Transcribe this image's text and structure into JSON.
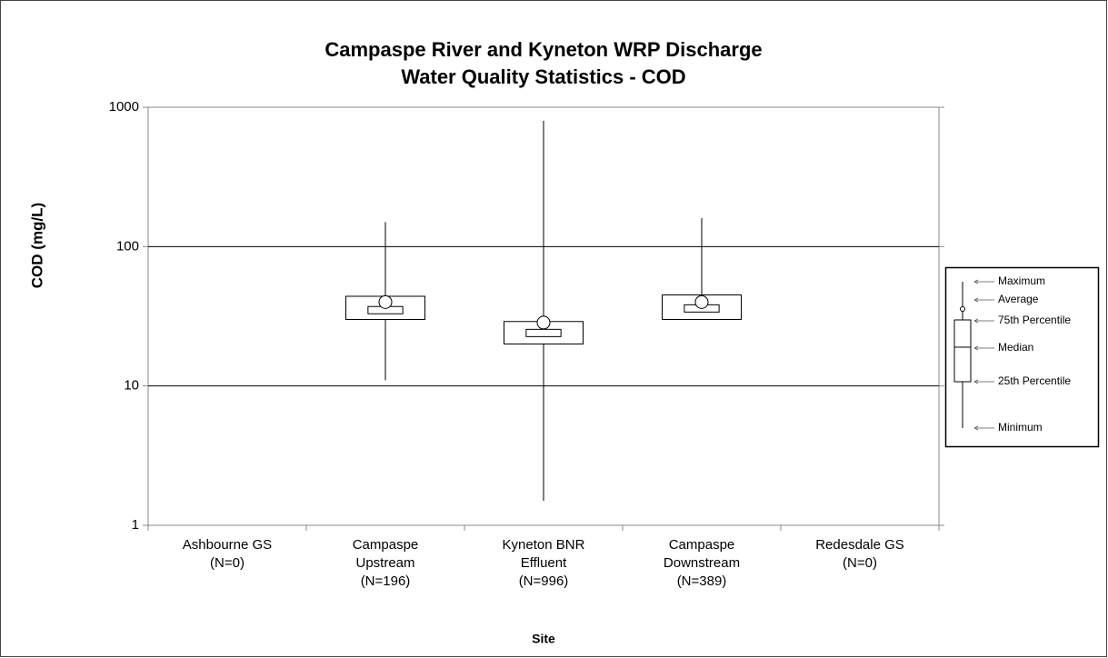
{
  "chart_data": {
    "type": "box",
    "title": [
      "Campaspe River and Kyneton WRP Discharge",
      "Water Quality Statistics - COD"
    ],
    "ylabel": "COD (mg/L)",
    "xlabel": "Site",
    "categories": [
      [
        "Ashbourne GS",
        "(N=0)"
      ],
      [
        "Campaspe",
        "Upstream",
        "(N=196)"
      ],
      [
        "Kyneton BNR",
        "Effluent",
        "(N=996)"
      ],
      [
        "Campaspe",
        "Downstream",
        "(N=389)"
      ],
      [
        "Redesdale GS",
        "(N=0)"
      ]
    ],
    "boxes": [
      null,
      {
        "min": 11,
        "q1": 30,
        "median": 35,
        "q3": 44,
        "max": 150,
        "mean": 40
      },
      {
        "min": 1.5,
        "q1": 20,
        "median": 24,
        "q3": 29,
        "max": 800,
        "mean": 28.5
      },
      {
        "min": 30,
        "q1": 30,
        "median": 36,
        "q3": 45,
        "max": 160,
        "mean": 40
      },
      null
    ],
    "log_scale": true,
    "ylim": [
      1,
      1000
    ],
    "yticks": [
      1,
      10,
      100,
      1000
    ],
    "grid": true,
    "legend_labels": [
      "Maximum",
      "Average",
      "75th Percentile",
      "Median",
      "25th Percentile",
      "Minimum"
    ]
  }
}
